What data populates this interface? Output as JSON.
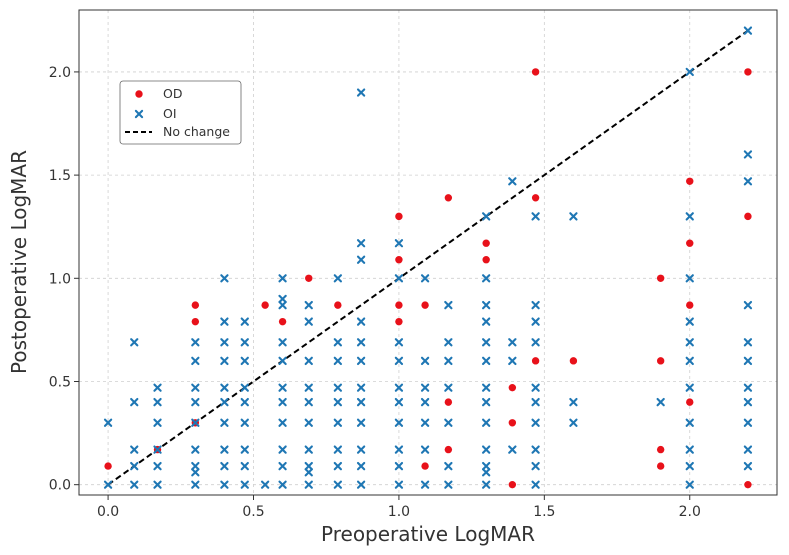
{
  "chart_data": {
    "type": "scatter",
    "title": "",
    "xlabel": "Preoperative LogMAR",
    "ylabel": "Postoperative LogMAR",
    "xlim": [
      -0.1,
      2.3
    ],
    "ylim": [
      -0.05,
      2.3
    ],
    "xticks": [
      0.0,
      0.5,
      1.0,
      1.5,
      2.0
    ],
    "xtick_labels": [
      "0.0",
      "0.5",
      "1.0",
      "1.5",
      "2.0"
    ],
    "yticks": [
      0.0,
      0.5,
      1.0,
      1.5,
      2.0
    ],
    "ytick_labels": [
      "0.0",
      "0.5",
      "1.0",
      "1.5",
      "2.0"
    ],
    "grid": true,
    "legend_position": "top-left",
    "colors": {
      "OD": "#e8111a",
      "OI": "#1f77b4",
      "line": "#000000"
    },
    "legend": [
      {
        "label": "OD",
        "marker": "circle"
      },
      {
        "label": "OI",
        "marker": "x"
      },
      {
        "label": "No change",
        "marker": "dashed-line"
      }
    ],
    "reference_line": {
      "label": "No change",
      "x": [
        0.0,
        2.2
      ],
      "y": [
        0.0,
        2.2
      ]
    },
    "series": [
      {
        "name": "OD",
        "marker": "circle",
        "points": [
          [
            0.0,
            0.09
          ],
          [
            0.17,
            0.17
          ],
          [
            0.3,
            0.3
          ],
          [
            0.3,
            0.79
          ],
          [
            0.3,
            0.87
          ],
          [
            0.54,
            0.87
          ],
          [
            0.6,
            0.79
          ],
          [
            0.69,
            1.0
          ],
          [
            0.79,
            0.87
          ],
          [
            1.0,
            0.79
          ],
          [
            1.0,
            0.87
          ],
          [
            1.0,
            1.09
          ],
          [
            1.0,
            1.3
          ],
          [
            1.09,
            0.09
          ],
          [
            1.09,
            0.87
          ],
          [
            1.17,
            0.17
          ],
          [
            1.17,
            0.4
          ],
          [
            1.17,
            1.39
          ],
          [
            1.3,
            1.09
          ],
          [
            1.3,
            1.17
          ],
          [
            1.39,
            0.0
          ],
          [
            1.39,
            0.3
          ],
          [
            1.39,
            0.47
          ],
          [
            1.47,
            0.6
          ],
          [
            1.47,
            1.39
          ],
          [
            1.47,
            2.0
          ],
          [
            1.6,
            0.6
          ],
          [
            1.9,
            0.09
          ],
          [
            1.9,
            0.17
          ],
          [
            1.9,
            0.6
          ],
          [
            1.9,
            1.0
          ],
          [
            2.0,
            0.4
          ],
          [
            2.0,
            0.87
          ],
          [
            2.0,
            1.17
          ],
          [
            2.0,
            1.47
          ],
          [
            2.2,
            0.0
          ],
          [
            2.2,
            1.3
          ],
          [
            2.2,
            2.0
          ]
        ]
      },
      {
        "name": "OI",
        "marker": "x",
        "points": [
          [
            0.0,
            0.0
          ],
          [
            0.0,
            0.3
          ],
          [
            0.09,
            0.0
          ],
          [
            0.09,
            0.09
          ],
          [
            0.09,
            0.17
          ],
          [
            0.09,
            0.4
          ],
          [
            0.09,
            0.69
          ],
          [
            0.17,
            0.0
          ],
          [
            0.17,
            0.09
          ],
          [
            0.17,
            0.17
          ],
          [
            0.17,
            0.3
          ],
          [
            0.17,
            0.4
          ],
          [
            0.17,
            0.47
          ],
          [
            0.3,
            0.0
          ],
          [
            0.3,
            0.06
          ],
          [
            0.3,
            0.09
          ],
          [
            0.3,
            0.17
          ],
          [
            0.3,
            0.3
          ],
          [
            0.3,
            0.4
          ],
          [
            0.3,
            0.47
          ],
          [
            0.3,
            0.6
          ],
          [
            0.3,
            0.69
          ],
          [
            0.4,
            0.0
          ],
          [
            0.4,
            0.09
          ],
          [
            0.4,
            0.17
          ],
          [
            0.4,
            0.3
          ],
          [
            0.4,
            0.4
          ],
          [
            0.4,
            0.47
          ],
          [
            0.4,
            0.6
          ],
          [
            0.4,
            0.69
          ],
          [
            0.4,
            0.79
          ],
          [
            0.4,
            1.0
          ],
          [
            0.47,
            0.0
          ],
          [
            0.47,
            0.09
          ],
          [
            0.47,
            0.17
          ],
          [
            0.47,
            0.3
          ],
          [
            0.47,
            0.4
          ],
          [
            0.47,
            0.47
          ],
          [
            0.47,
            0.6
          ],
          [
            0.47,
            0.69
          ],
          [
            0.47,
            0.79
          ],
          [
            0.54,
            0.0
          ],
          [
            0.6,
            0.0
          ],
          [
            0.6,
            0.09
          ],
          [
            0.6,
            0.17
          ],
          [
            0.6,
            0.3
          ],
          [
            0.6,
            0.4
          ],
          [
            0.6,
            0.47
          ],
          [
            0.6,
            0.6
          ],
          [
            0.6,
            0.69
          ],
          [
            0.6,
            0.87
          ],
          [
            0.6,
            0.9
          ],
          [
            0.6,
            1.0
          ],
          [
            0.69,
            0.0
          ],
          [
            0.69,
            0.06
          ],
          [
            0.69,
            0.09
          ],
          [
            0.69,
            0.17
          ],
          [
            0.69,
            0.3
          ],
          [
            0.69,
            0.4
          ],
          [
            0.69,
            0.47
          ],
          [
            0.69,
            0.6
          ],
          [
            0.69,
            0.79
          ],
          [
            0.69,
            0.87
          ],
          [
            0.79,
            0.0
          ],
          [
            0.79,
            0.09
          ],
          [
            0.79,
            0.17
          ],
          [
            0.79,
            0.3
          ],
          [
            0.79,
            0.4
          ],
          [
            0.79,
            0.47
          ],
          [
            0.79,
            0.6
          ],
          [
            0.79,
            0.69
          ],
          [
            0.79,
            1.0
          ],
          [
            0.87,
            0.0
          ],
          [
            0.87,
            0.09
          ],
          [
            0.87,
            0.17
          ],
          [
            0.87,
            0.3
          ],
          [
            0.87,
            0.4
          ],
          [
            0.87,
            0.47
          ],
          [
            0.87,
            0.6
          ],
          [
            0.87,
            0.69
          ],
          [
            0.87,
            0.79
          ],
          [
            0.87,
            1.09
          ],
          [
            0.87,
            1.17
          ],
          [
            0.87,
            1.9
          ],
          [
            1.0,
            0.0
          ],
          [
            1.0,
            0.09
          ],
          [
            1.0,
            0.17
          ],
          [
            1.0,
            0.3
          ],
          [
            1.0,
            0.4
          ],
          [
            1.0,
            0.47
          ],
          [
            1.0,
            0.6
          ],
          [
            1.0,
            0.69
          ],
          [
            1.0,
            1.0
          ],
          [
            1.0,
            1.17
          ],
          [
            1.09,
            0.0
          ],
          [
            1.09,
            0.17
          ],
          [
            1.09,
            0.3
          ],
          [
            1.09,
            0.4
          ],
          [
            1.09,
            0.47
          ],
          [
            1.09,
            0.6
          ],
          [
            1.09,
            1.0
          ],
          [
            1.17,
            0.0
          ],
          [
            1.17,
            0.09
          ],
          [
            1.17,
            0.3
          ],
          [
            1.17,
            0.47
          ],
          [
            1.17,
            0.6
          ],
          [
            1.17,
            0.69
          ],
          [
            1.17,
            0.87
          ],
          [
            1.3,
            0.0
          ],
          [
            1.3,
            0.06
          ],
          [
            1.3,
            0.09
          ],
          [
            1.3,
            0.17
          ],
          [
            1.3,
            0.3
          ],
          [
            1.3,
            0.4
          ],
          [
            1.3,
            0.47
          ],
          [
            1.3,
            0.6
          ],
          [
            1.3,
            0.69
          ],
          [
            1.3,
            0.79
          ],
          [
            1.3,
            0.87
          ],
          [
            1.3,
            1.0
          ],
          [
            1.3,
            1.3
          ],
          [
            1.39,
            0.17
          ],
          [
            1.39,
            0.6
          ],
          [
            1.39,
            0.69
          ],
          [
            1.39,
            1.47
          ],
          [
            1.47,
            0.0
          ],
          [
            1.47,
            0.09
          ],
          [
            1.47,
            0.17
          ],
          [
            1.47,
            0.3
          ],
          [
            1.47,
            0.4
          ],
          [
            1.47,
            0.47
          ],
          [
            1.47,
            0.69
          ],
          [
            1.47,
            0.79
          ],
          [
            1.47,
            0.87
          ],
          [
            1.47,
            1.3
          ],
          [
            1.6,
            0.3
          ],
          [
            1.6,
            0.4
          ],
          [
            1.6,
            1.3
          ],
          [
            1.9,
            0.4
          ],
          [
            2.0,
            0.0
          ],
          [
            2.0,
            0.09
          ],
          [
            2.0,
            0.17
          ],
          [
            2.0,
            0.3
          ],
          [
            2.0,
            0.47
          ],
          [
            2.0,
            0.6
          ],
          [
            2.0,
            0.69
          ],
          [
            2.0,
            0.79
          ],
          [
            2.0,
            1.0
          ],
          [
            2.0,
            1.3
          ],
          [
            2.0,
            2.0
          ],
          [
            2.2,
            0.09
          ],
          [
            2.2,
            0.17
          ],
          [
            2.2,
            0.3
          ],
          [
            2.2,
            0.4
          ],
          [
            2.2,
            0.47
          ],
          [
            2.2,
            0.6
          ],
          [
            2.2,
            0.69
          ],
          [
            2.2,
            0.87
          ],
          [
            2.2,
            1.47
          ],
          [
            2.2,
            1.6
          ],
          [
            2.2,
            2.2
          ]
        ]
      }
    ]
  }
}
